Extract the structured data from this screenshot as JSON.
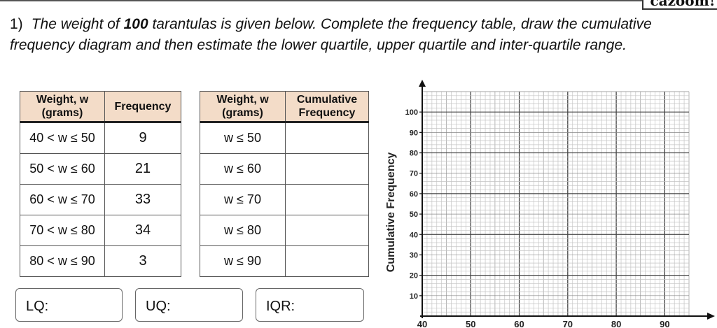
{
  "logo": "cazoom!",
  "question": {
    "number": "1)",
    "text": "The weight of 100 tarantulas is given below. Complete the frequency table, draw the cumulative frequency diagram and then estimate the lower quartile, upper quartile and inter-quartile range.",
    "bold_part": "100"
  },
  "freq_table": {
    "headers": [
      "Weight, w (grams)",
      "Frequency"
    ],
    "rows": [
      {
        "weight": "40 < w ≤ 50",
        "frequency": "9"
      },
      {
        "weight": "50 < w ≤ 60",
        "frequency": "21"
      },
      {
        "weight": "60 < w ≤ 70",
        "frequency": "33"
      },
      {
        "weight": "70 < w ≤ 80",
        "frequency": "34"
      },
      {
        "weight": "80 < w ≤ 90",
        "frequency": "3"
      }
    ]
  },
  "cum_table": {
    "headers": [
      "Weight, w (grams)",
      "Cumulative Frequency"
    ],
    "rows": [
      {
        "weight": "w ≤ 50",
        "cf": ""
      },
      {
        "weight": "w ≤ 60",
        "cf": ""
      },
      {
        "weight": "w ≤ 70",
        "cf": ""
      },
      {
        "weight": "w ≤ 80",
        "cf": ""
      },
      {
        "weight": "w ≤ 90",
        "cf": ""
      }
    ]
  },
  "answers": {
    "lq": "LQ:",
    "uq": "UQ:",
    "iqr": "IQR:"
  },
  "header_color": "#f3dcc8",
  "chart_data": {
    "type": "line",
    "title": "",
    "xlabel": "",
    "ylabel": "Cumulative Frequency",
    "xlim": [
      40,
      95
    ],
    "ylim": [
      0,
      110
    ],
    "xticks": [
      40,
      50,
      60,
      70,
      80,
      90
    ],
    "yticks": [
      10,
      20,
      30,
      40,
      50,
      60,
      70,
      80,
      90,
      100
    ],
    "grid": true,
    "series": []
  }
}
